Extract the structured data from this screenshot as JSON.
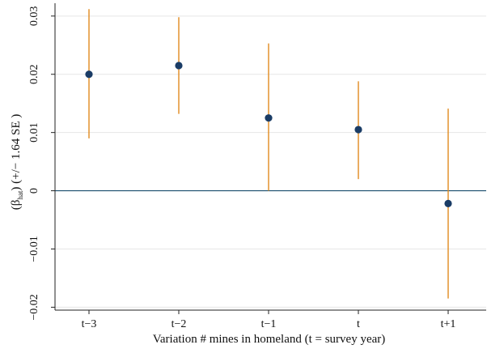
{
  "chart_data": {
    "type": "scatter",
    "subtype": "coefficient-plot-with-error-bars",
    "xlabel": "Variation # mines in homeland (t = survey year)",
    "ylabel_parts": {
      "open": "(β",
      "sub": "hat",
      "close": ") (+/− 1.64 SE )"
    },
    "categories": [
      "t−3",
      "t−2",
      "t−1",
      "t",
      "t+1"
    ],
    "estimates": [
      0.02,
      0.0215,
      0.0125,
      0.0105,
      -0.0022
    ],
    "ci_lower": [
      0.009,
      0.0132,
      0.0,
      0.002,
      -0.0185
    ],
    "ci_upper": [
      0.0312,
      0.0298,
      0.0253,
      0.0188,
      0.0141
    ],
    "yticks": [
      -0.02,
      -0.01,
      0,
      0.01,
      0.02,
      0.03
    ],
    "ytick_labels": [
      "−0.02",
      "−0.01",
      "0",
      "0.01",
      "0.02",
      "0.03"
    ],
    "ylim": [
      -0.0205,
      0.0322
    ],
    "grid": "horizontal",
    "reference_line_y": 0,
    "colors": {
      "point": "#1a3c66",
      "error_bar": "#e08a1e",
      "zero_line": "#1a4d6e",
      "grid": "#e6e6e6",
      "axis": "#222222"
    }
  }
}
